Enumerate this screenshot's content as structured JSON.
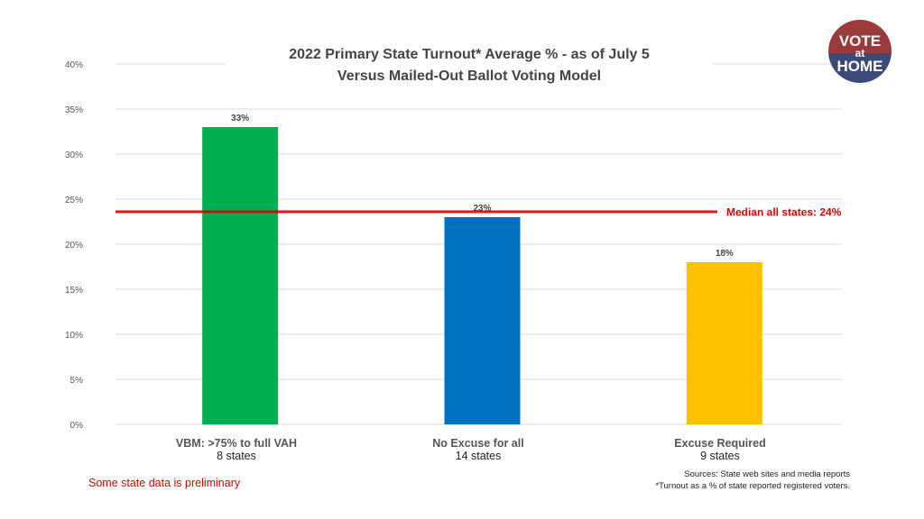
{
  "chart_data": {
    "type": "bar",
    "title": "2022 Primary State Turnout* Average % - as of July 5",
    "subtitle": "Versus Mailed-Out Ballot Voting Model",
    "categories": [
      "VBM: >75% to full VAH",
      "No Excuse for all",
      "Excuse Required"
    ],
    "category_sublabels": [
      "8 states",
      "14 states",
      "9 states"
    ],
    "values": [
      33,
      23,
      18
    ],
    "data_labels": [
      "33%",
      "23%",
      "18%"
    ],
    "colors": [
      "#00b050",
      "#0070c0",
      "#ffc000"
    ],
    "ylim": [
      0,
      40
    ],
    "yticks": [
      "0%",
      "5%",
      "10%",
      "15%",
      "20%",
      "25%",
      "30%",
      "35%",
      "40%"
    ],
    "grid": true,
    "xlabel": "",
    "ylabel": "",
    "reference_line": {
      "label": "Median all states: 24%",
      "value": 23.6,
      "color": "#e00000"
    }
  },
  "footnotes": {
    "preliminary": "Some state data is preliminary",
    "sources": "Sources: State web sites and media reports",
    "turnout_note": "*Turnout as a % of state reported registered voters."
  },
  "logo": {
    "line1": "VOTE",
    "line2": "at",
    "line3": "HOME",
    "top_color": "#9b3a3a",
    "bottom_color": "#3b4a7a"
  }
}
